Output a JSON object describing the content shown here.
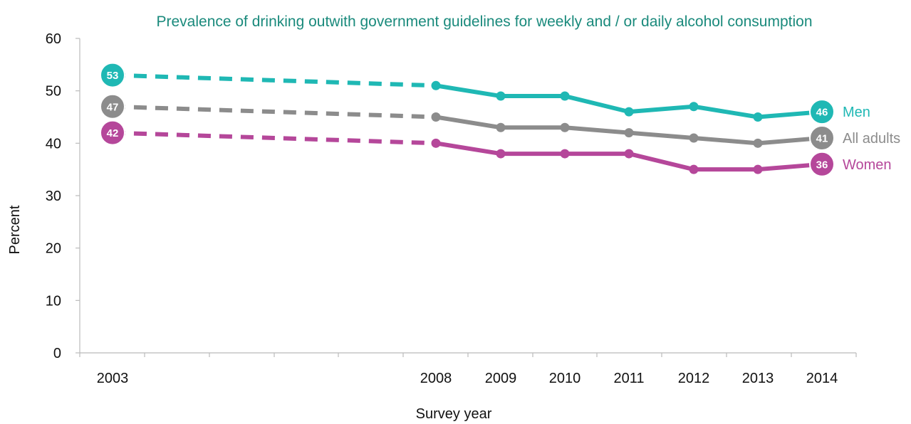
{
  "chart_data": {
    "type": "line",
    "title": "Prevalence of drinking outwith government guidelines for weekly and / or daily alcohol consumption",
    "xlabel": "Survey year",
    "ylabel": "Percent",
    "x": [
      "2003",
      "2008",
      "2009",
      "2010",
      "2011",
      "2012",
      "2013",
      "2014"
    ],
    "ylim": [
      0,
      60
    ],
    "yticks": [
      "0",
      "10",
      "20",
      "30",
      "40",
      "50",
      "60"
    ],
    "grid": false,
    "dashed_segment": [
      "2003",
      "2008"
    ],
    "series": [
      {
        "name": "Men",
        "color": "#1fb8b4",
        "values": [
          53,
          51,
          49,
          49,
          46,
          47,
          45,
          46
        ],
        "start_label": "53",
        "end_label": "46"
      },
      {
        "name": "All adults",
        "color": "#8c8c8c",
        "values": [
          47,
          45,
          43,
          43,
          42,
          41,
          40,
          41
        ],
        "start_label": "47",
        "end_label": "41"
      },
      {
        "name": "Women",
        "color": "#b5479a",
        "values": [
          42,
          40,
          38,
          38,
          38,
          35,
          35,
          36
        ],
        "start_label": "42",
        "end_label": "36"
      }
    ],
    "title_color": "#1a8a7c",
    "axis_color": "#bbbbbb"
  }
}
